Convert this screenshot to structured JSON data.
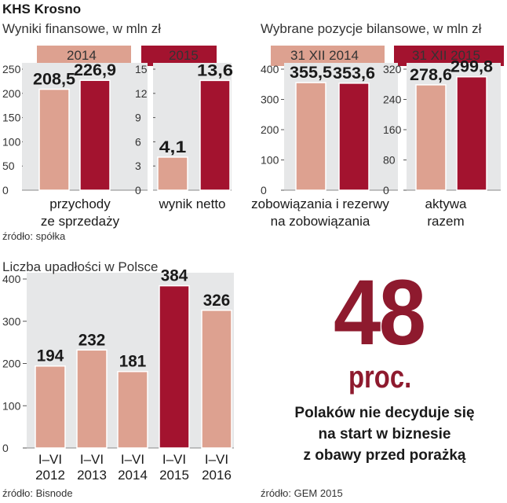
{
  "header": {
    "title": "KHS Krosno",
    "subtitle_left": "Wyniki finansowe, w mln zł",
    "subtitle_right": "Wybrane pozycje bilansowe, w mln zł"
  },
  "colors": {
    "light": "#dda190",
    "dark": "#a3132f",
    "panel": "#e6e7e8",
    "axis": "#555555"
  },
  "legends": {
    "left": [
      "2014",
      "2015"
    ],
    "right": [
      "31 XII 2014",
      "31 XII 2015"
    ]
  },
  "chart_data": [
    {
      "type": "bar",
      "title": "Wyniki finansowe, w mln zł",
      "categories": [
        "przychody ze sprzedaży"
      ],
      "category_lines": [
        [
          "przychody",
          "ze sprzedaży"
        ]
      ],
      "series": [
        {
          "name": "2014",
          "values": [
            208.5
          ]
        },
        {
          "name": "2015",
          "values": [
            226.9
          ]
        }
      ],
      "labels": [
        "208,5",
        "226,9"
      ],
      "yticks": [
        0,
        50,
        100,
        150,
        200,
        250
      ],
      "ylim": [
        0,
        250
      ]
    },
    {
      "type": "bar",
      "title": "Wyniki finansowe, w mln zł",
      "categories": [
        "wynik netto"
      ],
      "category_lines": [
        [
          "wynik netto"
        ]
      ],
      "series": [
        {
          "name": "2014",
          "values": [
            4.1
          ]
        },
        {
          "name": "2015",
          "values": [
            13.6
          ]
        }
      ],
      "labels": [
        "4,1",
        "13,6"
      ],
      "yticks": [
        0,
        3,
        6,
        9,
        12,
        15
      ],
      "ylim": [
        0,
        15
      ]
    },
    {
      "type": "bar",
      "title": "Wybrane pozycje bilansowe, w mln zł",
      "categories": [
        "zobowiązania i rezerwy na zobowiązania"
      ],
      "category_lines": [
        [
          "zobowiązania i rezerwy",
          "na zobowiązania"
        ]
      ],
      "series": [
        {
          "name": "31 XII 2014",
          "values": [
            355.5
          ]
        },
        {
          "name": "31 XII 2015",
          "values": [
            353.6
          ]
        }
      ],
      "labels": [
        "355,5",
        "353,6"
      ],
      "yticks": [
        0,
        100,
        200,
        300,
        400
      ],
      "ylim": [
        0,
        400
      ]
    },
    {
      "type": "bar",
      "title": "Wybrane pozycje bilansowe, w mln zł",
      "categories": [
        "aktywa razem"
      ],
      "category_lines": [
        [
          "aktywa",
          "razem"
        ]
      ],
      "series": [
        {
          "name": "31 XII 2014",
          "values": [
            278.6
          ]
        },
        {
          "name": "31 XII 2015",
          "values": [
            299.8
          ]
        }
      ],
      "labels": [
        "278,6",
        "299,8"
      ],
      "yticks": [
        0,
        80,
        160,
        240,
        320
      ],
      "ylim": [
        0,
        320
      ]
    },
    {
      "type": "bar",
      "title": "Liczba upadłości w Polsce",
      "categories": [
        "I–VI 2012",
        "I–VI 2013",
        "I–VI 2014",
        "I–VI 2015",
        "I–VI 2016"
      ],
      "category_lines": [
        [
          "I–VI",
          "2012"
        ],
        [
          "I–VI",
          "2013"
        ],
        [
          "I–VI",
          "2014"
        ],
        [
          "I–VI",
          "2015"
        ],
        [
          "I–VI",
          "2016"
        ]
      ],
      "values": [
        194,
        232,
        181,
        384,
        326
      ],
      "labels": [
        "194",
        "232",
        "181",
        "384",
        "326"
      ],
      "highlight_index": 3,
      "yticks": [
        0,
        100,
        200,
        300,
        400
      ],
      "ylim": [
        0,
        400
      ]
    }
  ],
  "sources": {
    "top": "źródło: spółka",
    "bottom_left": "źródło: Bisnode",
    "bottom_right": "źródło: GEM 2015"
  },
  "bankruptcy_title": "Liczba upadłości w Polsce",
  "stat": {
    "number": "48",
    "unit": "proc.",
    "lines": [
      "Polaków nie decyduje się",
      "na start w biznesie",
      "z obawy przed porażką"
    ]
  }
}
